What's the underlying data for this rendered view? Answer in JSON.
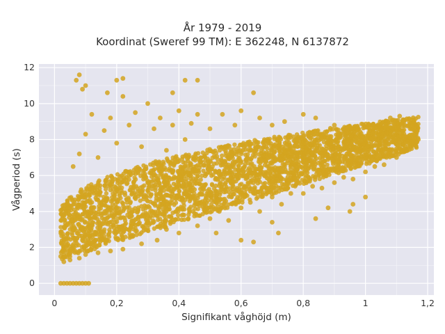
{
  "chart_data": {
    "type": "scatter",
    "title_lines": [
      "År 1979 - 2019",
      "Koordinat (Sweref 99 TM): E 362248, N 6137872"
    ],
    "xlabel": "Signifikant våghöjd (m)",
    "ylabel": "Vågperiod (s)",
    "xlim": [
      -0.05,
      1.22
    ],
    "ylim": [
      -0.65,
      12.2
    ],
    "x_ticks": [
      0,
      0.2,
      0.4,
      0.6,
      0.8,
      1,
      1.2
    ],
    "x_tick_labels": [
      "0",
      "0,2",
      "0,4",
      "0,6",
      "0,8",
      "1",
      "1,2"
    ],
    "y_ticks": [
      0,
      2,
      4,
      6,
      8,
      10,
      12
    ],
    "y_tick_labels": [
      "0",
      "2",
      "4",
      "6",
      "8",
      "10",
      "12"
    ],
    "grid": true,
    "background": "#e5e5ef",
    "marker_color": "#d4a520",
    "series": [
      {
        "points_summary": "Dense cloud of hourly observations; lower envelope rises from ~1.3 s at 0.02 m to ~7 s at 1.15 m; upper band 6–10 s for heights 0.05–0.6 m; a few zero-period readings at 0.02–0.11 m",
        "points": [
          [
            0.02,
            1.5
          ],
          [
            0.03,
            1.2
          ],
          [
            0.04,
            1.6
          ],
          [
            0.05,
            1.3
          ],
          [
            0.06,
            1.8
          ],
          [
            0.07,
            2.1
          ],
          [
            0.08,
            1.4
          ],
          [
            0.09,
            2.4
          ],
          [
            0.1,
            1.6
          ],
          [
            0.12,
            2.0
          ],
          [
            0.14,
            1.7
          ],
          [
            0.16,
            2.6
          ],
          [
            0.18,
            1.8
          ],
          [
            0.2,
            3.0
          ],
          [
            0.22,
            1.9
          ],
          [
            0.25,
            2.6
          ],
          [
            0.28,
            2.2
          ],
          [
            0.3,
            3.4
          ],
          [
            0.33,
            2.4
          ],
          [
            0.36,
            3.0
          ],
          [
            0.4,
            2.8
          ],
          [
            0.43,
            3.6
          ],
          [
            0.46,
            3.2
          ],
          [
            0.5,
            3.6
          ],
          [
            0.53,
            4.0
          ],
          [
            0.56,
            3.5
          ],
          [
            0.6,
            4.2
          ],
          [
            0.63,
            4.5
          ],
          [
            0.66,
            4.0
          ],
          [
            0.7,
            4.8
          ],
          [
            0.73,
            4.4
          ],
          [
            0.76,
            5.0
          ],
          [
            0.8,
            5.0
          ],
          [
            0.83,
            5.4
          ],
          [
            0.86,
            5.3
          ],
          [
            0.9,
            5.6
          ],
          [
            0.93,
            5.9
          ],
          [
            0.96,
            5.8
          ],
          [
            1.0,
            6.2
          ],
          [
            1.03,
            6.5
          ],
          [
            1.06,
            6.6
          ],
          [
            1.1,
            7.0
          ],
          [
            1.13,
            7.4
          ],
          [
            1.15,
            7.8
          ],
          [
            1.17,
            8.0
          ],
          [
            0.06,
            6.5
          ],
          [
            0.08,
            7.2
          ],
          [
            0.1,
            8.3
          ],
          [
            0.12,
            9.4
          ],
          [
            0.14,
            7.0
          ],
          [
            0.16,
            8.5
          ],
          [
            0.18,
            9.2
          ],
          [
            0.2,
            7.8
          ],
          [
            0.22,
            10.4
          ],
          [
            0.24,
            8.8
          ],
          [
            0.26,
            9.5
          ],
          [
            0.28,
            7.6
          ],
          [
            0.3,
            10.0
          ],
          [
            0.32,
            8.6
          ],
          [
            0.34,
            9.2
          ],
          [
            0.36,
            7.4
          ],
          [
            0.38,
            8.8
          ],
          [
            0.4,
            9.6
          ],
          [
            0.42,
            8.0
          ],
          [
            0.44,
            8.9
          ],
          [
            0.46,
            9.4
          ],
          [
            0.5,
            8.6
          ],
          [
            0.54,
            9.4
          ],
          [
            0.58,
            8.8
          ],
          [
            0.6,
            9.6
          ],
          [
            0.64,
            10.6
          ],
          [
            0.66,
            9.2
          ],
          [
            0.7,
            8.8
          ],
          [
            0.74,
            9.0
          ],
          [
            0.8,
            9.4
          ],
          [
            0.84,
            9.2
          ],
          [
            0.9,
            8.8
          ],
          [
            0.96,
            8.6
          ],
          [
            1.02,
            8.8
          ],
          [
            1.08,
            9.2
          ],
          [
            1.11,
            9.3
          ],
          [
            0.08,
            11.6
          ],
          [
            0.07,
            11.3
          ],
          [
            0.09,
            10.8
          ],
          [
            0.1,
            11.0
          ],
          [
            0.2,
            11.3
          ],
          [
            0.22,
            11.4
          ],
          [
            0.17,
            10.6
          ],
          [
            0.42,
            11.3
          ],
          [
            0.46,
            11.3
          ],
          [
            0.38,
            10.6
          ],
          [
            0.12,
            4.5
          ],
          [
            0.14,
            5.5
          ],
          [
            0.18,
            5.2
          ],
          [
            0.24,
            6.0
          ],
          [
            0.3,
            5.6
          ],
          [
            0.34,
            6.4
          ],
          [
            0.4,
            6.8
          ],
          [
            0.44,
            6.2
          ],
          [
            0.5,
            6.8
          ],
          [
            0.56,
            6.4
          ],
          [
            0.62,
            7.0
          ],
          [
            0.68,
            6.8
          ],
          [
            0.74,
            7.2
          ],
          [
            0.82,
            7.4
          ],
          [
            0.88,
            7.0
          ],
          [
            0.94,
            7.2
          ],
          [
            1.0,
            7.8
          ],
          [
            1.05,
            7.4
          ],
          [
            1.12,
            8.2
          ],
          [
            0.52,
            2.8
          ],
          [
            0.6,
            2.4
          ],
          [
            0.64,
            2.3
          ],
          [
            0.7,
            3.4
          ],
          [
            0.72,
            2.8
          ],
          [
            0.84,
            3.6
          ],
          [
            0.88,
            4.2
          ],
          [
            0.96,
            4.4
          ],
          [
            1.0,
            4.8
          ],
          [
            0.95,
            4.0
          ],
          [
            0.02,
            0.0
          ],
          [
            0.03,
            0.0
          ],
          [
            0.04,
            0.0
          ],
          [
            0.05,
            0.0
          ],
          [
            0.06,
            0.0
          ],
          [
            0.07,
            0.0
          ],
          [
            0.08,
            0.0
          ],
          [
            0.09,
            0.0
          ],
          [
            0.1,
            0.0
          ],
          [
            0.11,
            0.0
          ]
        ]
      }
    ]
  }
}
